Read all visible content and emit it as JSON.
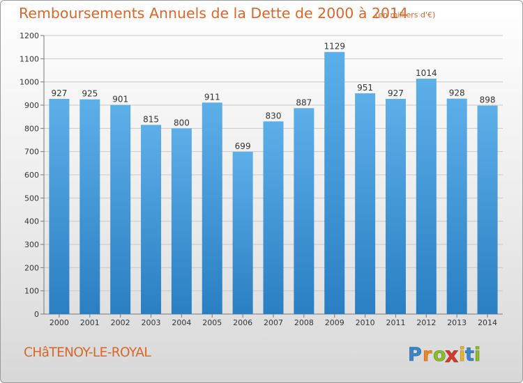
{
  "header": {
    "title": "Remboursements Annuels de la Dette de 2000 à 2014",
    "subtitle": "(en milliers d'€)"
  },
  "footer": {
    "commune": "CHâTENOY-LE-ROYAL",
    "logo_text": "Proxiti"
  },
  "colors": {
    "title": "#d9662a",
    "bar_top": "#5dafe9",
    "bar_bottom": "#2a7fc3",
    "grid": "#c8c8c8"
  },
  "chart_data": {
    "type": "bar",
    "title": "Remboursements Annuels de la Dette de 2000 à 2014",
    "subtitle": "(en milliers d'€)",
    "xlabel": "",
    "ylabel": "",
    "categories": [
      "2000",
      "2001",
      "2002",
      "2003",
      "2004",
      "2005",
      "2006",
      "2007",
      "2008",
      "2009",
      "2010",
      "2011",
      "2012",
      "2013",
      "2014"
    ],
    "values": [
      927,
      925,
      901,
      815,
      800,
      911,
      699,
      830,
      887,
      1129,
      951,
      927,
      1014,
      928,
      898
    ],
    "ylim": [
      0,
      1200
    ],
    "yticks": [
      0,
      100,
      200,
      300,
      400,
      500,
      600,
      700,
      800,
      900,
      1000,
      1100,
      1200
    ],
    "grid": true,
    "legend": "none",
    "data_labels": true
  }
}
